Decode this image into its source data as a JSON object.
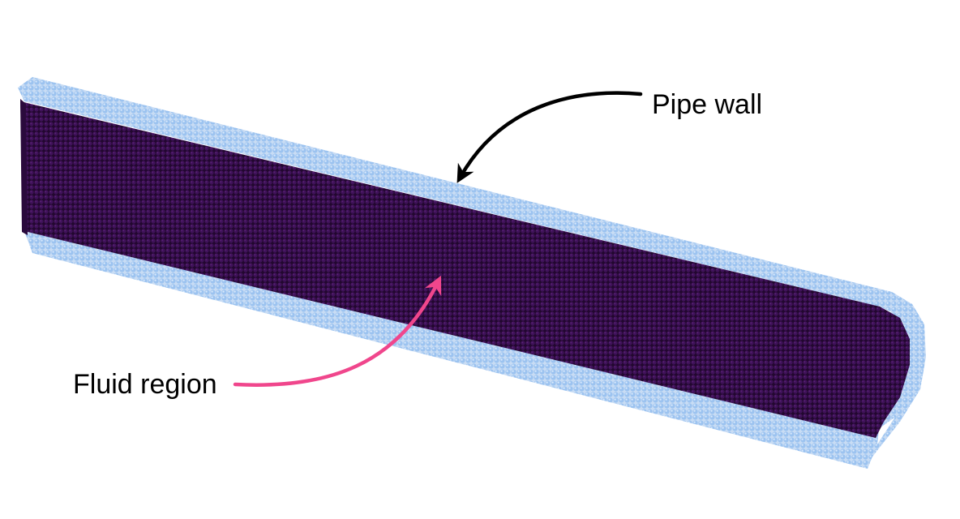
{
  "labels": {
    "pipe_wall": "Pipe wall",
    "fluid_region": "Fluid region"
  },
  "colors": {
    "background": "#ffffff",
    "wall_atom": "#9cc3f0",
    "wall_atom_shadow": "#6f9fd6",
    "fluid_atom": "#3a0f52",
    "fluid_atom_dark": "#1e0630",
    "pipe_wall_arrow": "#000000",
    "fluid_region_arrow": "#f0468c"
  }
}
